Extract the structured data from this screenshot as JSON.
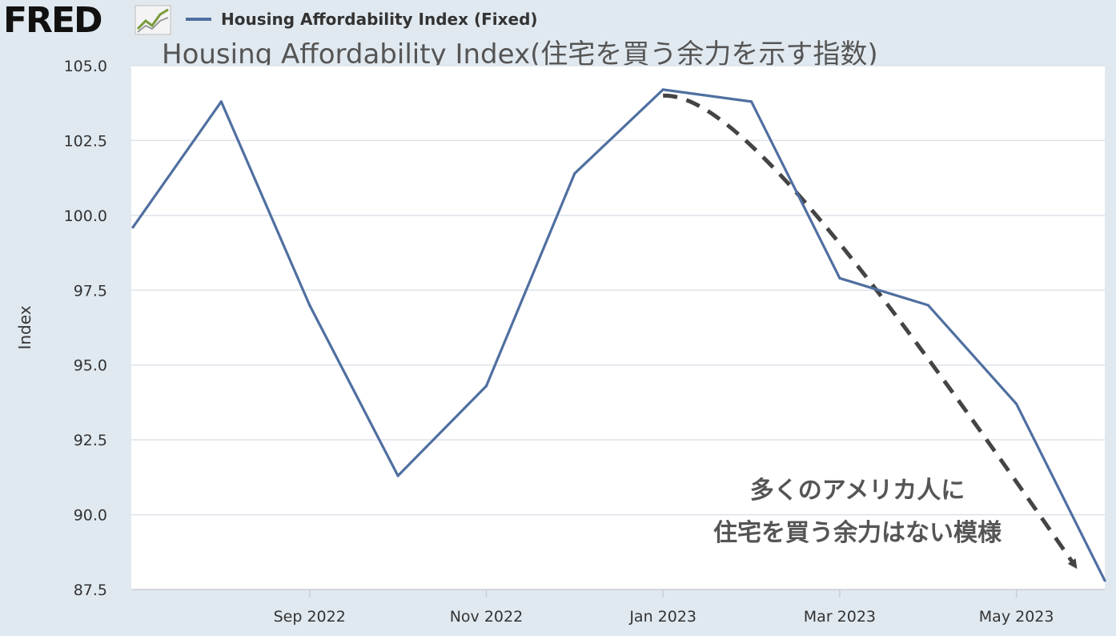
{
  "header": {
    "logo": "FRED",
    "legend_label": "Housing Affordability Index (Fixed)",
    "title": "Housing Affordability Index(住宅を買う余力を示す指数)"
  },
  "annotation": [
    "多くのアメリカ人に",
    "住宅を買う余力はない模様"
  ],
  "colors": {
    "series": "#4f6fa0",
    "background": "#e1e9f0",
    "plot": "#ffffff",
    "trend_arrow": "#444444"
  },
  "chart_data": {
    "type": "line",
    "ylabel": "Index",
    "xlabel": "",
    "ylim": [
      87.5,
      105.0
    ],
    "yticks": [
      "105.0",
      "102.5",
      "100.0",
      "97.5",
      "95.0",
      "92.5",
      "90.0",
      "87.5"
    ],
    "xticks": [
      "Sep 2022",
      "Nov 2022",
      "Jan 2023",
      "Mar 2023",
      "May 2023"
    ],
    "x": [
      "2022-07",
      "2022-08",
      "2022-09",
      "2022-10",
      "2022-11",
      "2022-12",
      "2023-01",
      "2023-02",
      "2023-03",
      "2023-04",
      "2023-05",
      "2023-06"
    ],
    "series": [
      {
        "name": "Housing Affordability Index (Fixed)",
        "values": [
          99.6,
          103.8,
          97.0,
          91.3,
          94.3,
          101.4,
          104.2,
          103.8,
          97.9,
          97.0,
          93.7,
          87.8
        ]
      }
    ],
    "trend": {
      "style": "dashed-arrow",
      "from": {
        "x": "2023-01",
        "y": 104.0
      },
      "to": {
        "x": "2023-06",
        "y": 88.0
      }
    },
    "grid": true,
    "legend": "top-left"
  }
}
